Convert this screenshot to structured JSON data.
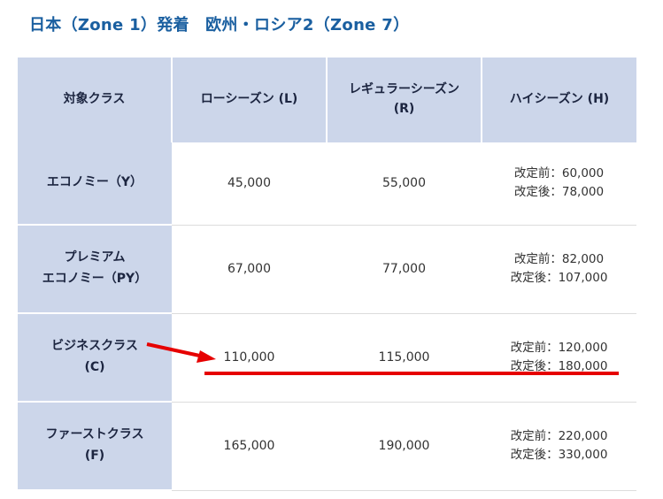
{
  "title": "日本（Zone 1）発着　欧州・ロシア2（Zone 7）",
  "headers": [
    "対象クラス",
    "ローシーズン (L)",
    "レギュラーシーズン\n(R)",
    "ハイシーズン (H)"
  ],
  "rows": [
    {
      "class": "エコノミー（Y）",
      "low": "45,000",
      "regular": "55,000",
      "high_before": "改定前：60,000",
      "high_after": "改定後：78,000"
    },
    {
      "class": "プレミアム\nエコノミー（PY）",
      "low": "67,000",
      "regular": "77,000",
      "high_before": "改定前：82,000",
      "high_after": "改定後：107,000"
    },
    {
      "class": "ビジネスクラス\n(C)",
      "low": "110,000",
      "regular": "115,000",
      "high_before": "改定前：120,000",
      "high_after": "改定後：180,000"
    },
    {
      "class": "ファーストクラス\n(F)",
      "low": "165,000",
      "regular": "190,000",
      "high_before": "改定前：220,000",
      "high_after": "改定後：330,000"
    }
  ],
  "annotation_color": "#e60000"
}
